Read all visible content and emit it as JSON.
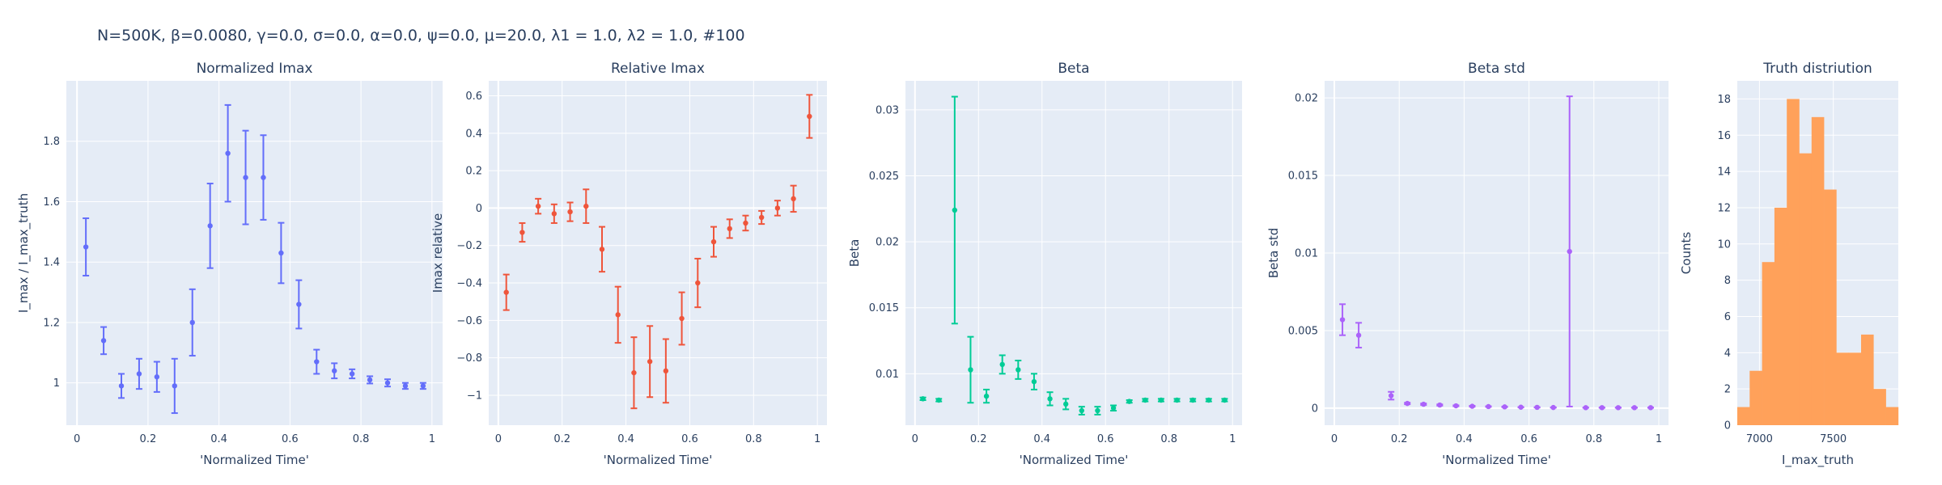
{
  "figure": {
    "suptitle": "N=500K, β=0.0080, γ=0.0, σ=0.0,  α=0.0, ψ=0.0, μ=20.0, λ1 = 1.0, λ2 = 1.0, #100"
  },
  "chart_data": [
    {
      "type": "scatter",
      "title": "Normalized Imax",
      "xlabel": "'Normalized Time'",
      "ylabel": "I_max / I_max_truth",
      "color": "#636efa",
      "xlim": [
        -0.03,
        1.03
      ],
      "ylim": [
        0.86,
        2.0
      ],
      "xticks": [
        0,
        0.2,
        0.4,
        0.6,
        0.8,
        1
      ],
      "xtick_labels": [
        "0",
        "0.2",
        "0.4",
        "0.6",
        "0.8",
        "1"
      ],
      "yticks": [
        1,
        1.2,
        1.4,
        1.6,
        1.8
      ],
      "ytick_labels": [
        "1",
        "1.2",
        "1.4",
        "1.6",
        "1.8"
      ],
      "x": [
        0.025,
        0.075,
        0.125,
        0.175,
        0.225,
        0.275,
        0.325,
        0.375,
        0.425,
        0.475,
        0.525,
        0.575,
        0.625,
        0.675,
        0.725,
        0.775,
        0.825,
        0.875,
        0.925,
        0.975
      ],
      "y": [
        1.45,
        1.14,
        0.99,
        1.03,
        1.02,
        0.99,
        1.2,
        1.52,
        1.76,
        1.68,
        1.68,
        1.43,
        1.26,
        1.07,
        1.04,
        1.03,
        1.01,
        1.0,
        0.99,
        0.99
      ],
      "err": [
        0.095,
        0.045,
        0.04,
        0.05,
        0.05,
        0.09,
        0.11,
        0.14,
        0.16,
        0.155,
        0.14,
        0.1,
        0.08,
        0.04,
        0.025,
        0.015,
        0.012,
        0.012,
        0.01,
        0.01
      ]
    },
    {
      "type": "scatter",
      "title": "Relative Imax",
      "xlabel": "'Normalized Time'",
      "ylabel": "Imax relative",
      "color": "#ef553b",
      "xlim": [
        -0.03,
        1.03
      ],
      "ylim": [
        -1.16,
        0.68
      ],
      "xticks": [
        0,
        0.2,
        0.4,
        0.6,
        0.8,
        1
      ],
      "xtick_labels": [
        "0",
        "0.2",
        "0.4",
        "0.6",
        "0.8",
        "1"
      ],
      "yticks": [
        -1,
        -0.8,
        -0.6,
        -0.4,
        -0.2,
        0,
        0.2,
        0.4,
        0.6
      ],
      "ytick_labels": [
        "−1",
        "−0.8",
        "−0.6",
        "−0.4",
        "−0.2",
        "0",
        "0.2",
        "0.4",
        "0.6"
      ],
      "x": [
        0.025,
        0.075,
        0.125,
        0.175,
        0.225,
        0.275,
        0.325,
        0.375,
        0.425,
        0.475,
        0.525,
        0.575,
        0.625,
        0.675,
        0.725,
        0.775,
        0.825,
        0.875,
        0.925,
        0.975
      ],
      "y": [
        -0.45,
        -0.13,
        0.01,
        -0.03,
        -0.02,
        0.01,
        -0.22,
        -0.57,
        -0.88,
        -0.82,
        -0.87,
        -0.59,
        -0.4,
        -0.18,
        -0.11,
        -0.08,
        -0.05,
        0.0,
        0.05,
        0.49
      ],
      "err": [
        0.095,
        0.05,
        0.04,
        0.05,
        0.05,
        0.09,
        0.12,
        0.15,
        0.19,
        0.19,
        0.17,
        0.14,
        0.13,
        0.08,
        0.05,
        0.04,
        0.035,
        0.04,
        0.07,
        0.115
      ]
    },
    {
      "type": "scatter",
      "title": "Beta",
      "xlabel": "'Normalized Time'",
      "ylabel": "Beta",
      "color": "#00cc96",
      "xlim": [
        -0.03,
        1.03
      ],
      "ylim": [
        0.0061,
        0.0322
      ],
      "xticks": [
        0,
        0.2,
        0.4,
        0.6,
        0.8,
        1
      ],
      "xtick_labels": [
        "0",
        "0.2",
        "0.4",
        "0.6",
        "0.8",
        "1"
      ],
      "yticks": [
        0.01,
        0.015,
        0.02,
        0.025,
        0.03
      ],
      "ytick_labels": [
        "0.01",
        "0.015",
        "0.02",
        "0.025",
        "0.03"
      ],
      "x": [
        0.025,
        0.075,
        0.125,
        0.175,
        0.225,
        0.275,
        0.325,
        0.375,
        0.425,
        0.475,
        0.525,
        0.575,
        0.625,
        0.675,
        0.725,
        0.775,
        0.825,
        0.875,
        0.925,
        0.975
      ],
      "y": [
        0.0081,
        0.008,
        0.0224,
        0.0103,
        0.0083,
        0.0107,
        0.0103,
        0.0094,
        0.0081,
        0.0077,
        0.0072,
        0.0072,
        0.0074,
        0.0079,
        0.008,
        0.008,
        0.008,
        0.008,
        0.008,
        0.008
      ],
      "err": [
        0.0001,
        0.0001,
        0.0086,
        0.0025,
        0.0005,
        0.0007,
        0.0007,
        0.0006,
        0.0005,
        0.0004,
        0.0003,
        0.0003,
        0.0002,
        0.0001,
        0.0001,
        0.0001,
        0.0001,
        0.0001,
        0.0001,
        0.0001
      ]
    },
    {
      "type": "scatter",
      "title": "Beta std",
      "xlabel": "'Normalized Time'",
      "ylabel": "Beta std",
      "color": "#ab63fa",
      "xlim": [
        -0.03,
        1.03
      ],
      "ylim": [
        -0.0011,
        0.0211
      ],
      "xticks": [
        0,
        0.2,
        0.4,
        0.6,
        0.8,
        1
      ],
      "xtick_labels": [
        "0",
        "0.2",
        "0.4",
        "0.6",
        "0.8",
        "1"
      ],
      "yticks": [
        0,
        0.005,
        0.01,
        0.015,
        0.02
      ],
      "ytick_labels": [
        "0",
        "0.005",
        "0.01",
        "0.015",
        "0.02"
      ],
      "x": [
        0.025,
        0.075,
        0.175,
        0.225,
        0.275,
        0.325,
        0.375,
        0.425,
        0.475,
        0.525,
        0.575,
        0.625,
        0.675,
        0.725,
        0.775,
        0.825,
        0.875,
        0.925,
        0.975
      ],
      "y": [
        0.0057,
        0.0047,
        0.0008,
        0.0003,
        0.00025,
        0.0002,
        0.00015,
        0.00012,
        0.0001,
        8e-05,
        6e-05,
        5e-05,
        4e-05,
        0.0101,
        3e-05,
        3e-05,
        3e-05,
        3e-05,
        3e-05
      ],
      "err": [
        0.001,
        0.0008,
        0.00025,
        5e-05,
        5e-05,
        4e-05,
        3e-05,
        3e-05,
        2e-05,
        2e-05,
        1e-05,
        1e-05,
        1e-05,
        0.01,
        1e-05,
        1e-05,
        1e-05,
        1e-05,
        1e-05
      ]
    },
    {
      "type": "bar",
      "title": "Truth distriution",
      "xlabel": "I_max_truth",
      "ylabel": "Counts",
      "color": "#ffa15a",
      "xlim": [
        6850,
        7940
      ],
      "ylim": [
        0,
        19
      ],
      "xticks": [
        7000,
        7500
      ],
      "xtick_labels": [
        "7000",
        "7500"
      ],
      "yticks": [
        0,
        2,
        4,
        6,
        8,
        10,
        12,
        14,
        16,
        18
      ],
      "ytick_labels": [
        "0",
        "2",
        "4",
        "6",
        "8",
        "10",
        "12",
        "14",
        "16",
        "18"
      ],
      "bin_width": 83.8,
      "bin_starts": [
        6850,
        6933.8,
        7017.6,
        7101.4,
        7185.2,
        7269,
        7352.8,
        7436.6,
        7520.4,
        7604.2,
        7688,
        7771.8,
        7855.6
      ],
      "values": [
        1,
        3,
        9,
        12,
        18,
        15,
        17,
        13,
        4,
        4,
        5,
        2,
        1
      ]
    }
  ]
}
